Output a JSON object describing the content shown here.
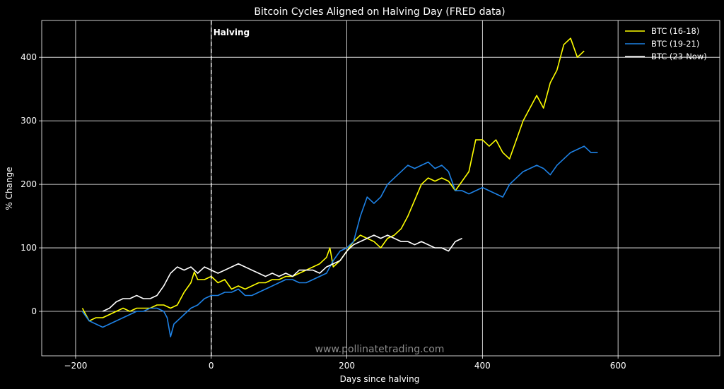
{
  "chart_data": {
    "type": "line",
    "title": "Bitcoin Cycles Aligned on Halving Day  (FRED data)",
    "xlabel": "Days since halving",
    "ylabel": "% Change",
    "xlim": [
      -250,
      750
    ],
    "ylim": [
      -70,
      458
    ],
    "xticks": [
      -200,
      0,
      200,
      400,
      600
    ],
    "xtick_labels": [
      "−200",
      "0",
      "200",
      "400",
      "600"
    ],
    "yticks": [
      0,
      100,
      200,
      300,
      400
    ],
    "ytick_labels": [
      "0",
      "100",
      "200",
      "300",
      "400"
    ],
    "grid": true,
    "background": "#000000",
    "legend_position": "top-right",
    "annotations": [
      {
        "text": "Halving",
        "x": 0
      }
    ],
    "watermark": "www.pollinatetrading.com",
    "series": [
      {
        "name": "BTC (16-18)",
        "color": "#ffff00",
        "x": [
          -190,
          -180,
          -170,
          -160,
          -150,
          -140,
          -130,
          -120,
          -110,
          -100,
          -90,
          -80,
          -70,
          -60,
          -50,
          -40,
          -30,
          -25,
          -20,
          -10,
          0,
          10,
          20,
          30,
          40,
          50,
          60,
          70,
          80,
          90,
          100,
          110,
          120,
          130,
          140,
          150,
          160,
          170,
          175,
          180,
          190,
          200,
          210,
          220,
          230,
          240,
          250,
          260,
          270,
          280,
          290,
          300,
          310,
          320,
          330,
          340,
          350,
          360,
          370,
          380,
          390,
          400,
          410,
          420,
          430,
          440,
          450,
          460,
          470,
          480,
          490,
          500,
          510,
          520,
          530,
          540,
          550
        ],
        "y": [
          5,
          -15,
          -10,
          -10,
          -5,
          0,
          5,
          0,
          5,
          5,
          5,
          10,
          10,
          5,
          10,
          30,
          45,
          62,
          50,
          50,
          55,
          45,
          50,
          35,
          40,
          35,
          40,
          45,
          45,
          50,
          50,
          55,
          55,
          60,
          65,
          70,
          75,
          85,
          100,
          70,
          80,
          95,
          110,
          120,
          115,
          110,
          100,
          115,
          120,
          130,
          150,
          175,
          200,
          210,
          205,
          210,
          205,
          190,
          205,
          220,
          270,
          270,
          260,
          270,
          250,
          240,
          270,
          300,
          320,
          340,
          320,
          360,
          380,
          420,
          430,
          400,
          410
        ]
      },
      {
        "name": "BTC (19-21)",
        "color": "#1e82e6",
        "x": [
          -190,
          -180,
          -170,
          -160,
          -150,
          -140,
          -130,
          -120,
          -110,
          -100,
          -90,
          -80,
          -70,
          -65,
          -60,
          -55,
          -50,
          -40,
          -30,
          -20,
          -10,
          0,
          10,
          20,
          30,
          40,
          50,
          60,
          70,
          80,
          90,
          100,
          110,
          120,
          130,
          140,
          150,
          160,
          170,
          180,
          190,
          200,
          210,
          220,
          230,
          240,
          250,
          260,
          270,
          280,
          290,
          300,
          310,
          320,
          330,
          340,
          350,
          360,
          370,
          380,
          390,
          400,
          410,
          420,
          430,
          440,
          450,
          460,
          470,
          480,
          490,
          500,
          510,
          520,
          530,
          540,
          550,
          560,
          570
        ],
        "y": [
          0,
          -15,
          -20,
          -25,
          -20,
          -15,
          -10,
          -5,
          0,
          0,
          5,
          5,
          0,
          -10,
          -40,
          -20,
          -15,
          -5,
          5,
          10,
          20,
          25,
          25,
          30,
          30,
          35,
          25,
          25,
          30,
          35,
          40,
          45,
          50,
          50,
          45,
          45,
          50,
          55,
          60,
          80,
          95,
          100,
          110,
          150,
          180,
          170,
          180,
          200,
          210,
          220,
          230,
          225,
          230,
          235,
          225,
          230,
          220,
          190,
          190,
          185,
          190,
          195,
          190,
          185,
          180,
          200,
          210,
          220,
          225,
          230,
          225,
          215,
          230,
          240,
          250,
          255,
          260,
          250,
          250
        ]
      },
      {
        "name": "BTC (23-Now)",
        "color": "#ffffff",
        "x": [
          -160,
          -150,
          -140,
          -130,
          -120,
          -110,
          -100,
          -90,
          -80,
          -70,
          -60,
          -50,
          -40,
          -30,
          -20,
          -10,
          0,
          10,
          20,
          30,
          40,
          50,
          60,
          70,
          80,
          90,
          100,
          110,
          120,
          130,
          140,
          150,
          160,
          170,
          180,
          190,
          200,
          210,
          220,
          230,
          240,
          250,
          260,
          270,
          280,
          290,
          300,
          310,
          320,
          330,
          340,
          350,
          360,
          370
        ],
        "y": [
          0,
          5,
          15,
          20,
          20,
          25,
          20,
          20,
          25,
          40,
          60,
          70,
          65,
          70,
          60,
          70,
          65,
          60,
          65,
          70,
          75,
          70,
          65,
          60,
          55,
          60,
          55,
          60,
          55,
          65,
          65,
          65,
          60,
          70,
          75,
          80,
          95,
          105,
          110,
          115,
          120,
          115,
          120,
          115,
          110,
          110,
          105,
          110,
          105,
          100,
          100,
          95,
          110,
          115
        ]
      }
    ]
  }
}
